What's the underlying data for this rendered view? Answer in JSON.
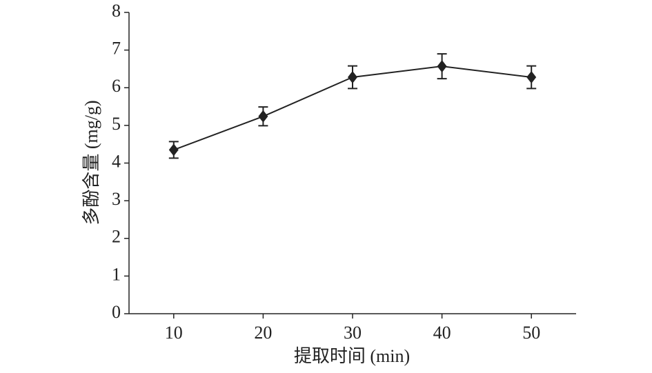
{
  "chart_data": {
    "type": "line",
    "xlabel": "提取时间 (min)",
    "ylabel": "多酚含量 (mg/g)",
    "x": [
      10,
      20,
      30,
      40,
      50
    ],
    "series": [
      {
        "color": "#222222",
        "values": [
          4.35,
          5.24,
          6.28,
          6.57,
          6.28
        ],
        "errors": [
          0.22,
          0.25,
          0.3,
          0.33,
          0.3
        ]
      }
    ],
    "xlim": [
      5,
      55
    ],
    "xticks": [
      10,
      20,
      30,
      40,
      50
    ],
    "ylim": [
      0,
      8
    ],
    "yticks": [
      0,
      1,
      2,
      3,
      4,
      5,
      6,
      7,
      8
    ],
    "grid": false
  }
}
